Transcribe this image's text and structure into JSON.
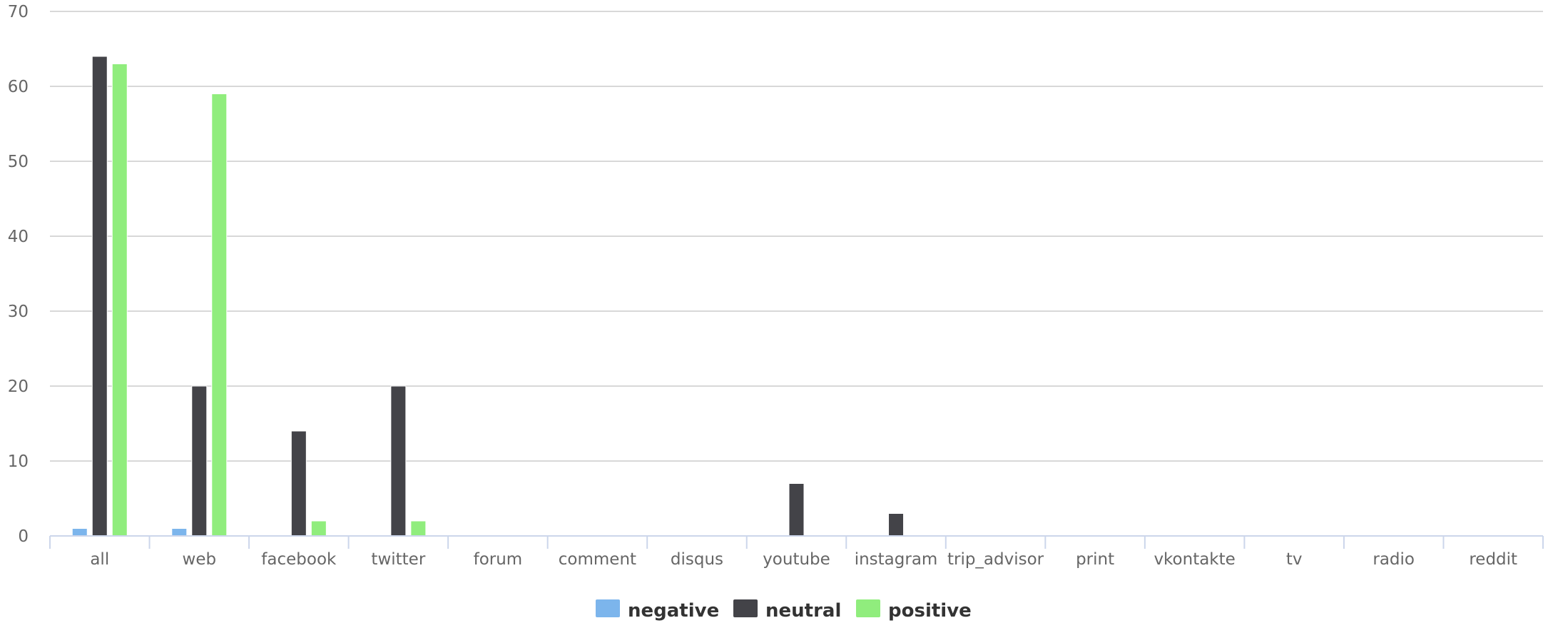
{
  "chart_data": {
    "type": "bar",
    "categories": [
      "all",
      "web",
      "facebook",
      "twitter",
      "forum",
      "comment",
      "disqus",
      "youtube",
      "instagram",
      "trip_advisor",
      "print",
      "vkontakte",
      "tv",
      "radio",
      "reddit"
    ],
    "series": [
      {
        "name": "negative",
        "color": "#7cb5ec",
        "values": [
          1,
          1,
          0,
          0,
          0,
          0,
          0,
          0,
          0,
          0,
          0,
          0,
          0,
          0,
          0
        ]
      },
      {
        "name": "neutral",
        "color": "#434348",
        "values": [
          64,
          20,
          14,
          20,
          0,
          0,
          0,
          7,
          3,
          0,
          0,
          0,
          0,
          0,
          0
        ]
      },
      {
        "name": "positive",
        "color": "#90ed7d",
        "values": [
          63,
          59,
          2,
          2,
          0,
          0,
          0,
          0,
          0,
          0,
          0,
          0,
          0,
          0,
          0
        ]
      }
    ],
    "y_ticks": [
      0,
      10,
      20,
      30,
      40,
      50,
      60,
      70
    ],
    "ylim": [
      0,
      70
    ],
    "grid": true,
    "legend_position": "bottom-center",
    "title": "",
    "xlabel": "",
    "ylabel": ""
  }
}
